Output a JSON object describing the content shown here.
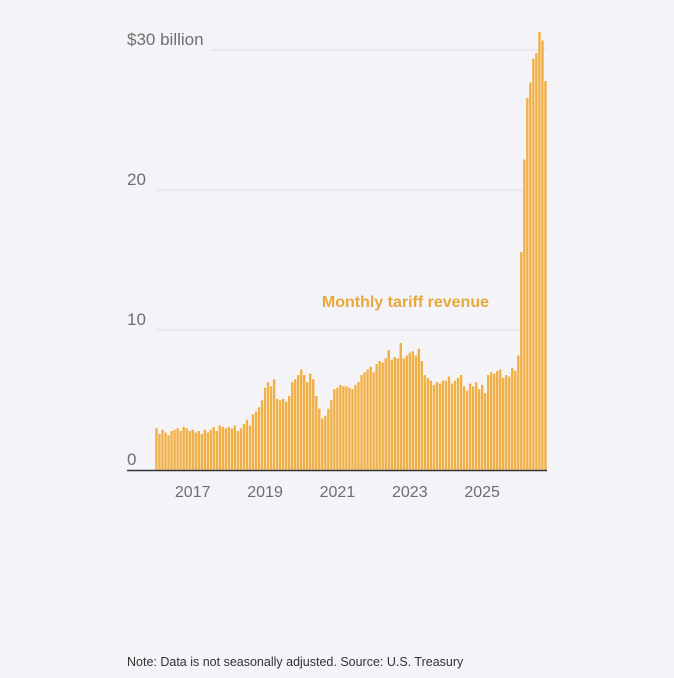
{
  "colors": {
    "bar": "#efb04a",
    "bar_edge": "#ffffff",
    "grid": "#dcdce0",
    "axis": "#333333",
    "label": "#e8a83a",
    "background": "#f4f4f8"
  },
  "chart_data": {
    "type": "bar",
    "title": "",
    "series_label": "Monthly tariff revenue",
    "ylabel": "",
    "xlabel": "",
    "ylim": [
      0,
      30
    ],
    "y_ticks": [
      {
        "value": 0,
        "label": "0"
      },
      {
        "value": 10,
        "label": "10"
      },
      {
        "value": 20,
        "label": "20"
      },
      {
        "value": 30,
        "label": "$30 billion"
      }
    ],
    "x_ticks": [
      {
        "month_index": 12,
        "label": "2017"
      },
      {
        "month_index": 36,
        "label": "2019"
      },
      {
        "month_index": 60,
        "label": "2021"
      },
      {
        "month_index": 84,
        "label": "2023"
      },
      {
        "month_index": 108,
        "label": "2025"
      }
    ],
    "start": "2016-01",
    "unit": "billion USD",
    "values": [
      3.0,
      2.6,
      2.9,
      2.7,
      2.5,
      2.8,
      2.9,
      3.0,
      2.8,
      3.1,
      3.0,
      2.8,
      2.9,
      2.7,
      2.8,
      2.6,
      2.9,
      2.7,
      2.9,
      3.1,
      2.8,
      3.2,
      3.1,
      3.0,
      3.1,
      3.0,
      3.2,
      2.8,
      3.0,
      3.3,
      3.6,
      3.2,
      4.0,
      4.2,
      4.5,
      5.0,
      5.9,
      6.3,
      6.0,
      6.5,
      5.1,
      5.0,
      5.1,
      4.9,
      5.3,
      6.3,
      6.5,
      6.8,
      7.2,
      6.8,
      6.3,
      6.9,
      6.5,
      5.3,
      4.4,
      3.7,
      3.9,
      4.4,
      5.0,
      5.8,
      5.9,
      6.1,
      6.0,
      6.0,
      5.9,
      5.8,
      6.1,
      6.3,
      6.8,
      7.0,
      7.2,
      7.4,
      7.0,
      7.6,
      7.8,
      7.7,
      8.0,
      8.6,
      7.9,
      8.1,
      8.0,
      9.1,
      8.0,
      8.2,
      8.4,
      8.5,
      8.2,
      8.7,
      7.8,
      6.8,
      6.6,
      6.4,
      6.1,
      6.3,
      6.2,
      6.4,
      6.4,
      6.7,
      6.2,
      6.4,
      6.6,
      6.8,
      6.0,
      5.7,
      6.2,
      6.0,
      6.3,
      5.8,
      6.1,
      5.5,
      6.8,
      7.0,
      6.9,
      7.1,
      7.2,
      6.6,
      6.8,
      6.7,
      7.3,
      7.1,
      8.2,
      15.6,
      22.2,
      26.6,
      27.7,
      29.4,
      29.8,
      31.3,
      30.7,
      27.8
    ]
  },
  "footer": {
    "note": "Note: Data is not seasonally adjusted. Source: U.S. Treasury"
  }
}
